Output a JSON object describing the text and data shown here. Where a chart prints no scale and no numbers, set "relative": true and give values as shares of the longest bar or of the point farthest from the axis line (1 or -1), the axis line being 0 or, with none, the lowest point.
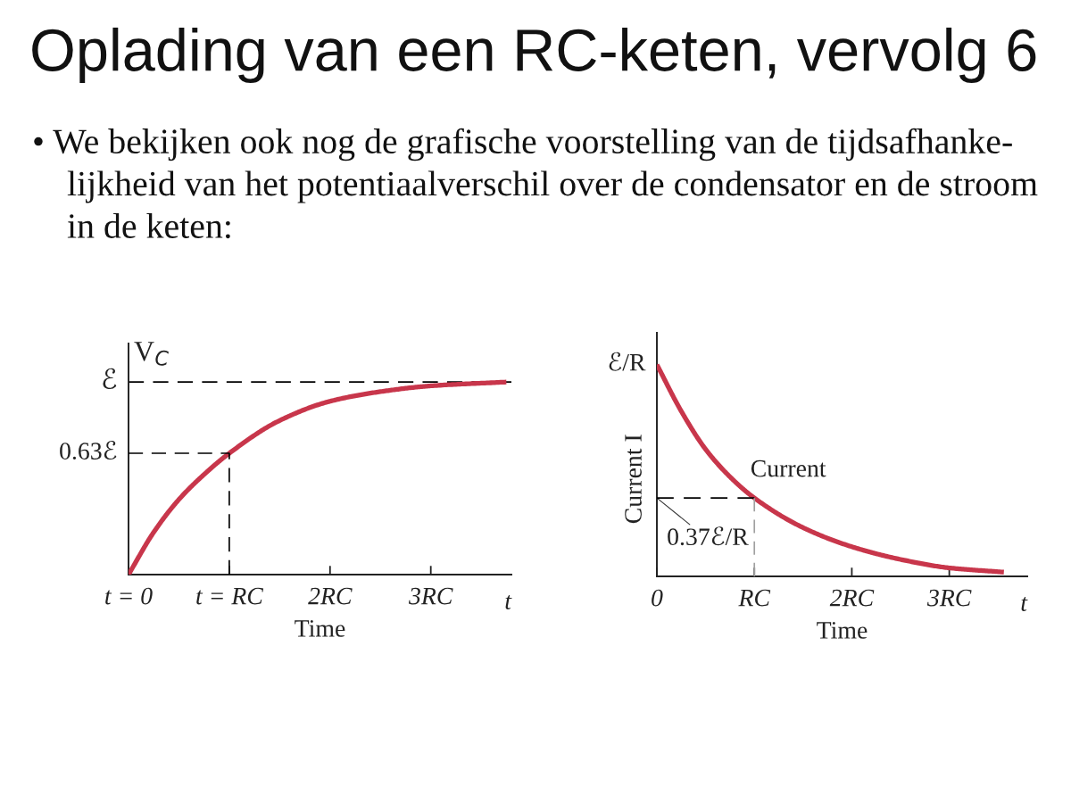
{
  "chart_data": [
    {
      "type": "line",
      "relative": true,
      "title": "Oplading van een RC-keten, vervolg 6",
      "subtitle": "• We bekijken ook nog de grafische voorstelling van de tijdsafhanke-\nlijkheid van het potentiaalverschil over de condensator en de stroom\nin de keten:",
      "ylabel": "V$_{C}$",
      "xlabel": "Time",
      "series": [
        {
          "color": "#c8364b",
          "x": [
            0,
            0.25,
            0.5,
            0.75,
            1,
            1.5,
            2,
            2.5,
            3,
            3.75
          ],
          "values": [
            0,
            0.22,
            0.39,
            0.52,
            0.63,
            0.8,
            0.9,
            0.95,
            0.98,
            1
          ]
        },
        {
          "name": "0.63ℰ",
          "color": "#000000",
          "line_style": "dashed",
          "x": [
            0,
            1,
            1
          ],
          "values": [
            0.63,
            0.63,
            0
          ]
        }
      ],
      "ref_lines": [
        {
          "axis": "y",
          "value": 1,
          "label": "ℰ",
          "color": "#000000",
          "line_style": "dashed"
        }
      ],
      "xlim": [
        0,
        3.8
      ],
      "xticks": [
        {
          "value": 0,
          "label": "t = 0"
        },
        {
          "value": 1,
          "label": "t = RC"
        },
        {
          "value": 2,
          "label": "2RC"
        },
        {
          "value": 3,
          "label": "3RC"
        }
      ],
      "annotations": [
        "t"
      ]
    },
    {
      "type": "line",
      "relative": true,
      "ylabel": "Current I",
      "xlabel": "Time",
      "series": [
        {
          "name": "Current",
          "color": "#c8364b",
          "x": [
            0,
            0.25,
            0.5,
            0.75,
            1,
            1.5,
            2,
            2.5,
            3,
            3.56
          ],
          "values": [
            1,
            0.78,
            0.6,
            0.47,
            0.37,
            0.23,
            0.14,
            0.08,
            0.04,
            0.02
          ]
        },
        {
          "color": "#000000",
          "line_style": "dashed",
          "x": [
            0,
            1
          ],
          "values": [
            0.37,
            0.37
          ]
        },
        {
          "color": "#a0a0a0",
          "line_style": "dashed",
          "x": [
            1,
            1
          ],
          "values": [
            0.37,
            0
          ]
        }
      ],
      "xlim": [
        0,
        3.8
      ],
      "xticks": [
        0,
        {
          "value": 1,
          "label": "RC"
        },
        {
          "value": 2,
          "label": "2RC"
        },
        {
          "value": 3,
          "label": "3RC"
        }
      ],
      "annotations": [
        "t",
        "ℰ/R",
        {
          "text": "0.37ℰ/R",
          "y": 0.37
        }
      ]
    }
  ]
}
